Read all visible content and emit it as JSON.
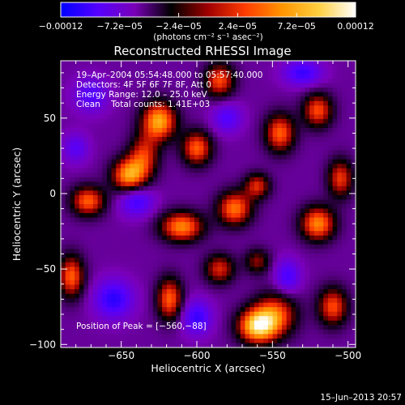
{
  "chart_data": {
    "type": "heatmap",
    "title": "Reconstructed RHESSI Image",
    "xlabel": "Heliocentric X (arcsec)",
    "ylabel": "Heliocentric Y (arcsec)",
    "xlim": [
      -690,
      -495
    ],
    "ylim": [
      -102,
      88
    ],
    "x_ticks": [
      {
        "value": -650,
        "label": "−650"
      },
      {
        "value": -600,
        "label": "−600"
      },
      {
        "value": -550,
        "label": "−550"
      },
      {
        "value": -500,
        "label": "−500"
      }
    ],
    "y_ticks": [
      {
        "value": 50,
        "label": "50"
      },
      {
        "value": 0,
        "label": "0"
      },
      {
        "value": -50,
        "label": "−50"
      },
      {
        "value": -100,
        "label": "−100"
      }
    ],
    "colorbar": {
      "min": -0.00012,
      "max": 0.00012,
      "ticks": [
        {
          "value": -0.00012,
          "label": "−0.00012"
        },
        {
          "value": -7.2e-05,
          "label": "−7.2e−05"
        },
        {
          "value": -2.4e-05,
          "label": "−2.4e−05"
        },
        {
          "value": 2.4e-05,
          "label": "2.4e−05"
        },
        {
          "value": 7.2e-05,
          "label": "7.2e−05"
        },
        {
          "value": 0.00012,
          "label": "0.00012"
        }
      ],
      "units": "(photons cm⁻² s⁻¹ asec⁻²)",
      "colors": [
        "#0000ff",
        "#5500ff",
        "#7a00b8",
        "#000000",
        "#a00000",
        "#ff3c00",
        "#ff9400",
        "#ffd040",
        "#ffffff"
      ]
    },
    "annotations": {
      "time_range": "19–Apr–2004 05:54:48.000 to 05:57:40.000",
      "detectors": "Detectors: 4F 5F 6F 7F 8F, Att 0",
      "energy_range": "Energy Range: 12.0 – 25.0 keV",
      "method_counts": "Clean    Total counts: 1.41E+03",
      "peak": "Position of Peak = [−560,−88]"
    },
    "peak_position": [
      -560,
      -88
    ],
    "grid": false,
    "sources": [
      {
        "x": -560,
        "y": -88,
        "amp": 1.05,
        "sx": 9,
        "sy": 8
      },
      {
        "x": -548,
        "y": -80,
        "amp": 0.7,
        "sx": 10,
        "sy": 10
      },
      {
        "x": -625,
        "y": 48,
        "amp": 0.95,
        "sx": 8,
        "sy": 9
      },
      {
        "x": -635,
        "y": 25,
        "amp": 0.6,
        "sx": 7,
        "sy": 10
      },
      {
        "x": -585,
        "y": 75,
        "amp": 0.7,
        "sx": 7,
        "sy": 8
      },
      {
        "x": -645,
        "y": 12,
        "amp": 0.9,
        "sx": 8,
        "sy": 8
      },
      {
        "x": -600,
        "y": 30,
        "amp": 0.75,
        "sx": 7,
        "sy": 8
      },
      {
        "x": -672,
        "y": -5,
        "amp": 0.75,
        "sx": 8,
        "sy": 7
      },
      {
        "x": -545,
        "y": 40,
        "amp": 0.75,
        "sx": 7,
        "sy": 9
      },
      {
        "x": -520,
        "y": 55,
        "amp": 0.7,
        "sx": 7,
        "sy": 8
      },
      {
        "x": -610,
        "y": -22,
        "amp": 0.85,
        "sx": 10,
        "sy": 7
      },
      {
        "x": -575,
        "y": -10,
        "amp": 0.8,
        "sx": 8,
        "sy": 8
      },
      {
        "x": -560,
        "y": 5,
        "amp": 0.6,
        "sx": 6,
        "sy": 6
      },
      {
        "x": -520,
        "y": -20,
        "amp": 0.85,
        "sx": 8,
        "sy": 8
      },
      {
        "x": -505,
        "y": 10,
        "amp": 0.65,
        "sx": 6,
        "sy": 9
      },
      {
        "x": -683,
        "y": -55,
        "amp": 0.75,
        "sx": 6,
        "sy": 10
      },
      {
        "x": -618,
        "y": -70,
        "amp": 0.75,
        "sx": 6,
        "sy": 10
      },
      {
        "x": -585,
        "y": -50,
        "amp": 0.6,
        "sx": 7,
        "sy": 7
      },
      {
        "x": -510,
        "y": -75,
        "amp": 0.7,
        "sx": 7,
        "sy": 9
      },
      {
        "x": -560,
        "y": -45,
        "amp": 0.45,
        "sx": 6,
        "sy": 6
      },
      {
        "x": -640,
        "y": -5,
        "amp": -0.5,
        "sx": 8,
        "sy": 7
      },
      {
        "x": -655,
        "y": -70,
        "amp": -0.55,
        "sx": 9,
        "sy": 9
      },
      {
        "x": -530,
        "y": 80,
        "amp": -0.5,
        "sx": 9,
        "sy": 6
      },
      {
        "x": -600,
        "y": -82,
        "amp": -0.5,
        "sx": 7,
        "sy": 8
      },
      {
        "x": -670,
        "y": 65,
        "amp": -0.4,
        "sx": 8,
        "sy": 8
      },
      {
        "x": -540,
        "y": -55,
        "amp": -0.45,
        "sx": 6,
        "sy": 8
      },
      {
        "x": -580,
        "y": 50,
        "amp": -0.4,
        "sx": 7,
        "sy": 7
      },
      {
        "x": -680,
        "y": 30,
        "amp": -0.35,
        "sx": 6,
        "sy": 7
      }
    ]
  },
  "footer": {
    "date_stamp": "15–Jun–2013 20:57"
  }
}
